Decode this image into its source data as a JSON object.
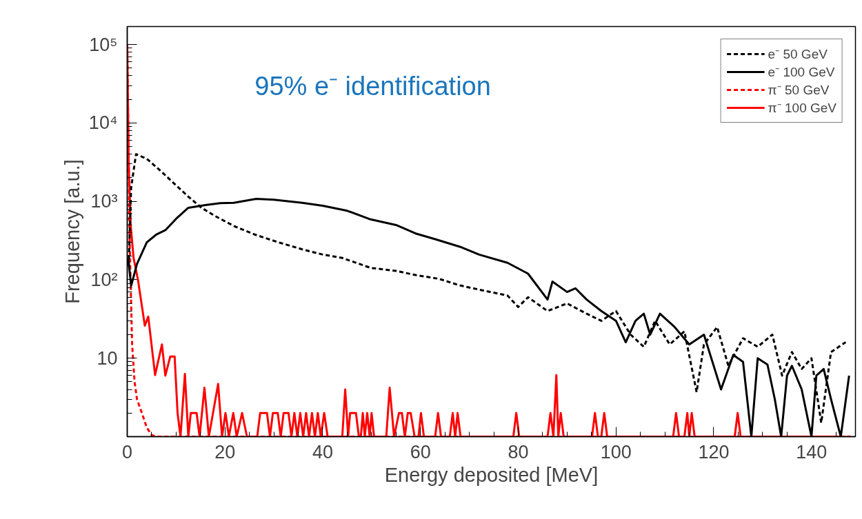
{
  "chart_data": {
    "type": "line",
    "xlabel": "Energy deposited [MeV]",
    "ylabel": "Frequency [a.u.]",
    "log": "y",
    "legend": "top right",
    "grid": false,
    "annotations": [
      "95% e⁻ identification"
    ],
    "xlim": [
      0,
      149
    ],
    "ylim": [
      1,
      170000
    ],
    "xticks": [
      0,
      20,
      40,
      60,
      80,
      100,
      120,
      140
    ],
    "yticks": [
      10,
      {
        "value": 100,
        "label": "10²"
      },
      {
        "value": 1000,
        "label": "10³"
      },
      {
        "value": 10000,
        "label": "10⁴"
      },
      {
        "value": 100000,
        "label": "10⁵"
      }
    ],
    "series": [
      {
        "name": "e⁻ 50 GeV",
        "color": "#000000",
        "line_style": "dashed",
        "x": [
          0.3,
          0.8,
          1.8,
          4,
          7,
          10,
          12.5,
          15.2,
          18,
          22,
          26,
          31,
          35.8,
          40,
          44,
          49.8,
          55,
          59,
          63.8,
          68,
          72,
          77.8,
          80,
          82,
          86,
          90,
          94,
          97,
          100,
          103,
          105.7,
          108,
          111,
          114,
          116.5,
          118,
          120.7,
          123,
          126,
          129,
          132,
          134,
          136,
          138,
          140,
          142,
          144,
          147
        ],
        "values": [
          150,
          1500,
          4000,
          3500,
          2400,
          1600,
          1150,
          830,
          650,
          480,
          380,
          300,
          245,
          210,
          190,
          142,
          130,
          115,
          103,
          85,
          75,
          63,
          45,
          60,
          40,
          50,
          37,
          30,
          40,
          20,
          14,
          30,
          15,
          22,
          3.7,
          15,
          25,
          8,
          18,
          14,
          20,
          6,
          12,
          7.3,
          10,
          1.5,
          12,
          16
        ]
      },
      {
        "name": "e⁻ 100 GeV",
        "color": "#000000",
        "line_style": "solid",
        "x": [
          0.2,
          0.8,
          2,
          4,
          6,
          7.8,
          10,
          12.5,
          16,
          19,
          21.8,
          26.4,
          30,
          35.8,
          40,
          45,
          49.8,
          55,
          59,
          63,
          68.4,
          72,
          77.8,
          82,
          86,
          87,
          90,
          91.7,
          94,
          97,
          100,
          102,
          104,
          105.7,
          107,
          109,
          112,
          115,
          118,
          121.5,
          124,
          126,
          127.7,
          129,
          131,
          132.5,
          133.8,
          135,
          136,
          138,
          140,
          141,
          142.5,
          144,
          146,
          147.7
        ],
        "values": [
          190,
          84,
          160,
          300,
          380,
          430,
          600,
          830,
          900,
          950,
          960,
          1080,
          1050,
          960,
          880,
          760,
          590,
          500,
          390,
          330,
          260,
          210,
          165,
          120,
          56,
          95,
          70,
          78,
          56,
          40,
          30,
          16,
          30,
          37,
          20,
          37,
          25,
          15,
          20,
          4,
          11,
          9,
          1,
          10,
          8.3,
          3,
          1,
          6,
          8,
          4,
          1,
          6,
          7.3,
          3,
          1,
          6
        ]
      },
      {
        "name": "π⁻ 50 GeV",
        "color": "#ff0000",
        "line_style": "dashed",
        "x": [
          0,
          0.2,
          0.5,
          0.8,
          1,
          1.5,
          2,
          3,
          4,
          5,
          6,
          10.3,
          148
        ],
        "values": [
          100000,
          10000,
          300,
          50,
          15,
          5,
          3,
          2,
          1.3,
          1.05,
          1,
          1,
          1
        ]
      },
      {
        "name": "π⁻ 100 GeV",
        "color": "#ff0000",
        "line_style": "solid",
        "x": [
          0,
          0.3,
          0.7,
          1.3,
          2.2,
          3.6,
          4.3,
          5.7,
          7.1,
          7.8,
          8.8,
          9.7,
          10.3,
          10.9,
          11.8,
          12.5,
          13,
          14.2,
          14.8,
          15.8,
          16.7,
          18.6,
          19.4,
          20.1,
          20.8,
          21.7,
          22.4,
          23.5,
          24.5,
          26.6,
          27.2,
          28.6,
          29.2,
          29.8,
          30.8,
          31.4,
          32,
          33,
          33.6,
          34.2,
          34.8,
          35.4,
          36,
          36.6,
          37.2,
          37.8,
          38.4,
          39,
          39.6,
          40.3,
          41,
          44,
          44.6,
          45.2,
          45.6,
          46.8,
          47.4,
          47.8,
          48.2,
          48.6,
          49.1,
          49.6,
          50,
          50.5,
          53,
          53.7,
          54.6,
          55.6,
          56.2,
          56.8,
          57.4,
          58,
          58.8,
          59.6,
          60.1,
          60.7,
          63,
          63.6,
          64.2,
          66,
          66.6,
          67.1,
          67.6,
          68.2,
          79,
          79.6,
          80.2,
          86,
          86.6,
          87.2,
          87.8,
          88.2,
          88.7,
          89.3,
          95.1,
          95.7,
          96.3,
          97,
          97.6,
          98.2,
          111.7,
          112.3,
          112.9,
          114,
          114.6,
          115,
          115.5,
          116.1,
          124.3,
          124.9,
          125.5,
          147
        ],
        "values": [
          100000,
          3000,
          500,
          190,
          100,
          26,
          34,
          6.1,
          15,
          6,
          10.5,
          10.5,
          2,
          1,
          6.3,
          1,
          2,
          2,
          1,
          4.2,
          1,
          4.7,
          1,
          2,
          1,
          2,
          1,
          2,
          1,
          1,
          2,
          2,
          1,
          2,
          2,
          1,
          2,
          2,
          1,
          2,
          1,
          2,
          1,
          2,
          1,
          2,
          1,
          2,
          1,
          2,
          1,
          1,
          4,
          1,
          2,
          2,
          1,
          1,
          2,
          1,
          2,
          1,
          2,
          1,
          1,
          4.2,
          1,
          2,
          2,
          1,
          2,
          2,
          1,
          1,
          2,
          1,
          1,
          2,
          1,
          1,
          2,
          1,
          2,
          1,
          1,
          2,
          1,
          1,
          2,
          1,
          6.1,
          1,
          2,
          1,
          1,
          2,
          1,
          1,
          2,
          1,
          1,
          2,
          1,
          1,
          2,
          1,
          2,
          1,
          1,
          2,
          1,
          1
        ]
      }
    ]
  }
}
